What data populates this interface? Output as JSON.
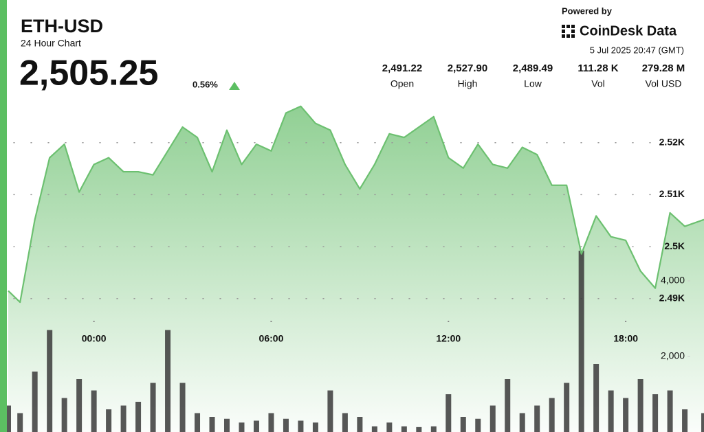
{
  "header": {
    "title": "ETH-USD",
    "subtitle": "24 Hour Chart",
    "price": "2,505.25",
    "change": "0.56%",
    "powered_by": "Powered by",
    "brand": "CoinDesk Data",
    "timestamp": "5 Jul 2025 20:47 (GMT)"
  },
  "stats": [
    {
      "value": "2,491.22",
      "label": "Open"
    },
    {
      "value": "2,527.90",
      "label": "High"
    },
    {
      "value": "2,489.49",
      "label": "Low"
    },
    {
      "value": "111.28 K",
      "label": "Vol"
    },
    {
      "value": "279.28 M",
      "label": "Vol USD"
    }
  ],
  "chart_data": {
    "type": "line",
    "x": [
      -2.9,
      -2.5,
      -2,
      -1.5,
      -1,
      -0.5,
      0,
      0.5,
      1,
      1.5,
      2,
      2.5,
      3,
      3.5,
      4,
      4.5,
      5,
      5.5,
      6,
      6.5,
      7,
      7.5,
      8,
      8.5,
      9,
      9.5,
      10,
      10.5,
      11,
      11.5,
      12,
      12.5,
      13,
      13.5,
      14,
      14.5,
      15,
      15.5,
      16,
      16.5,
      17,
      17.5,
      18,
      18.5,
      19,
      19.5,
      20,
      20.65
    ],
    "series": [
      {
        "color": "#6cc070",
        "values": [
          2491.5,
          2489.3,
          2505.2,
          2517.1,
          2519.7,
          2510.5,
          2515.8,
          2517.1,
          2514.4,
          2514.4,
          2513.8,
          2518.4,
          2523.0,
          2521.0,
          2514.4,
          2522.4,
          2515.8,
          2519.7,
          2518.4,
          2525.7,
          2527.0,
          2523.7,
          2522.4,
          2515.8,
          2511.1,
          2515.8,
          2521.7,
          2521.0,
          2523.0,
          2525.0,
          2517.1,
          2515.1,
          2519.7,
          2515.8,
          2515.1,
          2519.1,
          2517.7,
          2511.8,
          2511.8,
          2498.6,
          2505.9,
          2501.9,
          2501.2,
          2495.3,
          2492.0,
          2506.5,
          2503.9,
          2505.2
        ]
      },
      {
        "color": "#3a3a3a",
        "axis": "y2",
        "values": [
          700,
          500,
          1600,
          2700,
          900,
          1400,
          1100,
          600,
          700,
          800,
          1300,
          2700,
          1300,
          500,
          400,
          350,
          250,
          300,
          500,
          350,
          300,
          250,
          1100,
          500,
          400,
          150,
          250,
          150,
          130,
          150,
          1000,
          400,
          350,
          700,
          1400,
          500,
          700,
          900,
          1300,
          4800,
          1800,
          1100,
          900,
          1400,
          1000,
          1100,
          600,
          500
        ]
      }
    ],
    "xlim": [
      -2.9,
      20.65
    ],
    "xticks": [
      {
        "value": 0,
        "label": "00:00"
      },
      {
        "value": 6,
        "label": "06:00"
      },
      {
        "value": 12,
        "label": "12:00"
      },
      {
        "value": 18,
        "label": "18:00"
      }
    ],
    "ylim": [
      2465,
      2530
    ],
    "yticks": [
      {
        "value": 2490,
        "label": "2.49K"
      },
      {
        "value": 2500,
        "label": "2.5K"
      },
      {
        "value": 2510,
        "label": "2.51K"
      },
      {
        "value": 2520,
        "label": "2.52K"
      }
    ],
    "y2lim": [
      0,
      9000
    ],
    "y2ticks": [
      {
        "value": 2000,
        "label": "2,000"
      },
      {
        "value": 4000,
        "label": "4,000"
      }
    ],
    "grid": true
  }
}
